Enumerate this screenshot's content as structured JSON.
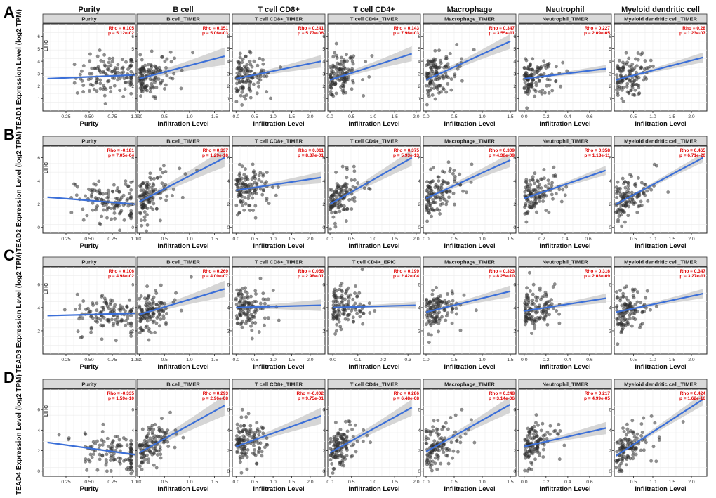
{
  "column_headers": [
    "Purity",
    "B cell",
    "T cell CD8+",
    "T cell CD4+",
    "Macrophage",
    "Neutrophil",
    "Myeloid dendritic cell"
  ],
  "cohort_label": "LIHC",
  "colors": {
    "points": "#333333",
    "line": "#3b6fd8",
    "band": "#c8c8c8",
    "stats": "#e00000",
    "strip": "#d9d9d9"
  },
  "chart_data": [
    {
      "row": "A",
      "ylabel": "TEAD1 Expression Level (log2 TPM)",
      "ylim": [
        0,
        7
      ],
      "yticks": [
        1,
        2,
        3,
        4,
        5,
        6
      ],
      "panels": [
        {
          "strip": "Purity",
          "xlabel": "Purity",
          "rho": "Rho = 0.105",
          "p": "p = 5.12e-02",
          "xticks": [
            "0.25",
            "0.50",
            "0.75",
            "1.00"
          ],
          "xlim": [
            0,
            1
          ],
          "fit": [
            [
              0.05,
              2.6
            ],
            [
              1.0,
              2.9
            ]
          ],
          "band": 0.15
        },
        {
          "strip": "B cell_TIMER",
          "xlabel": "Infiltration Level",
          "rho": "Rho = 0.151",
          "p": "p = 5.06e-03",
          "xticks": [
            "0.0",
            "0.5",
            "1.0",
            "1.5"
          ],
          "xlim": [
            -0.05,
            1.8
          ],
          "fit": [
            [
              0.0,
              2.6
            ],
            [
              1.7,
              4.4
            ]
          ],
          "band": 0.7
        },
        {
          "strip": "T cell CD8+_TIMER",
          "xlabel": "Infiltration Level",
          "rho": "Rho = 0.241",
          "p": "p = 5.77e-06",
          "xticks": [
            "0.0",
            "0.5",
            "1.0",
            "1.5",
            "2.0"
          ],
          "xlim": [
            -0.1,
            2.4
          ],
          "fit": [
            [
              0.0,
              2.6
            ],
            [
              2.3,
              4.0
            ]
          ],
          "band": 0.5
        },
        {
          "strip": "T cell CD4+_TIMER",
          "xlabel": "Infiltration Level",
          "rho": "Rho = 0.143",
          "p": "p = 7.96e-03",
          "xticks": [
            "0.0",
            "0.5",
            "1.0",
            "1.5",
            "2.0"
          ],
          "xlim": [
            -0.05,
            2.1
          ],
          "fit": [
            [
              0.0,
              2.5
            ],
            [
              1.9,
              4.6
            ]
          ],
          "band": 0.6
        },
        {
          "strip": "Macrophage_TIMER",
          "xlabel": "Infiltration Level",
          "rho": "Rho = 0.347",
          "p": "p = 3.55e-11",
          "xticks": [
            "0.0",
            "0.5",
            "1.0",
            "1.5"
          ],
          "xlim": [
            -0.05,
            1.6
          ],
          "fit": [
            [
              0.0,
              2.5
            ],
            [
              1.5,
              5.6
            ]
          ],
          "band": 0.6
        },
        {
          "strip": "Neutrophil_TIMER",
          "xlabel": "Infiltration Level",
          "rho": "Rho = 0.227",
          "p": "p = 2.09e-05",
          "xticks": [
            "0.0",
            "0.2",
            "0.4",
            "0.6"
          ],
          "xlim": [
            -0.05,
            0.8
          ],
          "fit": [
            [
              0.0,
              2.6
            ],
            [
              0.75,
              3.4
            ]
          ],
          "band": 0.3
        },
        {
          "strip": "Myeloid dendritic cell_TIMER",
          "xlabel": "Infiltration Level",
          "rho": "Rho = 0.28",
          "p": "p = 1.23e-07",
          "xticks": [
            "0.5",
            "1.0",
            "1.5",
            "2.0"
          ],
          "xlim": [
            0.0,
            2.4
          ],
          "fit": [
            [
              0.05,
              2.5
            ],
            [
              2.3,
              4.3
            ]
          ],
          "band": 0.4
        }
      ]
    },
    {
      "row": "B",
      "ylabel": "TEAD2 Expression Level (log2 TPM)",
      "ylim": [
        -0.5,
        7
      ],
      "yticks": [
        0,
        2,
        4,
        6
      ],
      "panels": [
        {
          "strip": "Purity",
          "xlabel": "Purity",
          "rho": "Rho = -0.181",
          "p": "p = 7.05e-04",
          "xticks": [
            "0.25",
            "0.50",
            "0.75",
            "1.00"
          ],
          "xlim": [
            0,
            1
          ],
          "fit": [
            [
              0.05,
              2.6
            ],
            [
              1.0,
              2.0
            ]
          ],
          "band": 0.15
        },
        {
          "strip": "B cell_TIMER",
          "xlabel": "Infiltration Level",
          "rho": "Rho = 0.337",
          "p": "p = 1.29e-10",
          "xticks": [
            "0.0",
            "0.5",
            "1.0",
            "1.5"
          ],
          "xlim": [
            -0.05,
            1.8
          ],
          "fit": [
            [
              0.0,
              2.2
            ],
            [
              1.7,
              6.0
            ]
          ],
          "band": 0.8
        },
        {
          "strip": "T cell CD8+_TIMER",
          "xlabel": "Infiltration Level",
          "rho": "Rho = 0.011",
          "p": "p = 8.37e-01",
          "xticks": [
            "0.0",
            "0.5",
            "1.0",
            "1.5",
            "2.0"
          ],
          "xlim": [
            -0.1,
            2.4
          ],
          "fit": [
            [
              0.0,
              3.2
            ],
            [
              2.3,
              4.3
            ]
          ],
          "band": 0.5
        },
        {
          "strip": "T cell CD4+_TIMER",
          "xlabel": "Infiltration Level",
          "rho": "Rho = 0.375",
          "p": "p = 5.93e-13",
          "xticks": [
            "0.0",
            "0.5",
            "1.0",
            "1.5",
            "2.0"
          ],
          "xlim": [
            -0.05,
            2.1
          ],
          "fit": [
            [
              0.0,
              2.0
            ],
            [
              1.9,
              6.0
            ]
          ],
          "band": 0.7
        },
        {
          "strip": "Macrophage_TIMER",
          "xlabel": "Infiltration Level",
          "rho": "Rho = 0.309",
          "p": "p = 4.38e-09",
          "xticks": [
            "0.0",
            "0.5",
            "1.0",
            "1.5"
          ],
          "xlim": [
            -0.05,
            1.6
          ],
          "fit": [
            [
              0.0,
              2.5
            ],
            [
              1.5,
              5.8
            ]
          ],
          "band": 0.6
        },
        {
          "strip": "Neutrophil_TIMER",
          "xlabel": "Infiltration Level",
          "rho": "Rho = 0.358",
          "p": "p = 1.13e-11",
          "xticks": [
            "0.2",
            "0.4",
            "0.6"
          ],
          "xlim": [
            0.0,
            0.8
          ],
          "fit": [
            [
              0.05,
              2.5
            ],
            [
              0.75,
              4.9
            ]
          ],
          "band": 0.4
        },
        {
          "strip": "Myeloid dendritic cell_TIMER",
          "xlabel": "Infiltration Level",
          "rho": "Rho = 0.465",
          "p": "p = 6.71e-20",
          "xticks": [
            "0.5",
            "1.0",
            "1.5",
            "2.0"
          ],
          "xlim": [
            0.0,
            2.4
          ],
          "fit": [
            [
              0.05,
              2.0
            ],
            [
              2.3,
              6.0
            ]
          ],
          "band": 0.4
        }
      ]
    },
    {
      "row": "C",
      "ylabel": "TEAD3 Expression Level (log2 TPM)",
      "ylim": [
        0,
        7.5
      ],
      "yticks": [
        2,
        4,
        6
      ],
      "panels": [
        {
          "strip": "Purity",
          "xlabel": "Purity",
          "rho": "Rho = 0.106",
          "p": "p = 4.98e-02",
          "xticks": [
            "0.25",
            "0.50",
            "0.75",
            "1.00"
          ],
          "xlim": [
            0,
            1
          ],
          "fit": [
            [
              0.05,
              3.3
            ],
            [
              1.0,
              3.5
            ]
          ],
          "band": 0.15
        },
        {
          "strip": "B cell_TIMER",
          "xlabel": "Infiltration Level",
          "rho": "Rho = 0.269",
          "p": "p = 4.00e-07",
          "xticks": [
            "0.0",
            "0.5",
            "1.0",
            "1.5"
          ],
          "xlim": [
            -0.05,
            1.8
          ],
          "fit": [
            [
              0.0,
              3.4
            ],
            [
              1.7,
              5.6
            ]
          ],
          "band": 0.7
        },
        {
          "strip": "T cell CD8+_TIMER",
          "xlabel": "Infiltration Level",
          "rho": "Rho = 0.056",
          "p": "p = 2.98e-01",
          "xticks": [
            "0.0",
            "0.5",
            "1.0",
            "1.5",
            "2.0"
          ],
          "xlim": [
            -0.1,
            2.4
          ],
          "fit": [
            [
              0.0,
              4.0
            ],
            [
              2.3,
              4.2
            ]
          ],
          "band": 0.5
        },
        {
          "strip": "T cell CD4+_EPIC",
          "xlabel": "Infiltration Level",
          "rho": "Rho = 0.199",
          "p": "p = 2.42e-04",
          "xticks": [
            "0.0",
            "0.1",
            "0.2",
            "0.3"
          ],
          "xlim": [
            -0.02,
            0.35
          ],
          "fit": [
            [
              0.0,
              4.0
            ],
            [
              0.33,
              4.2
            ]
          ],
          "band": 0.3
        },
        {
          "strip": "Macrophage_TIMER",
          "xlabel": "Infiltration Level",
          "rho": "Rho = 0.323",
          "p": "p = 8.25e-10",
          "xticks": [
            "0.0",
            "0.5",
            "1.0",
            "1.5"
          ],
          "xlim": [
            -0.05,
            1.6
          ],
          "fit": [
            [
              0.0,
              3.6
            ],
            [
              1.5,
              5.4
            ]
          ],
          "band": 0.5
        },
        {
          "strip": "Neutrophil_TIMER",
          "xlabel": "Infiltration Level",
          "rho": "Rho = 0.316",
          "p": "p = 2.03e-09",
          "xticks": [
            "0.0",
            "0.2",
            "0.4",
            "0.6"
          ],
          "xlim": [
            -0.05,
            0.8
          ],
          "fit": [
            [
              0.0,
              3.7
            ],
            [
              0.75,
              4.8
            ]
          ],
          "band": 0.4
        },
        {
          "strip": "Myeloid dendritic cell_TIMER",
          "xlabel": "Infiltration Level",
          "rho": "Rho = 0.347",
          "p": "p = 3.27e-11",
          "xticks": [
            "0.5",
            "1.0",
            "1.5",
            "2.0"
          ],
          "xlim": [
            0.0,
            2.4
          ],
          "fit": [
            [
              0.05,
              3.6
            ],
            [
              2.3,
              5.2
            ]
          ],
          "band": 0.4
        }
      ]
    },
    {
      "row": "D",
      "ylabel": "TEAD4 Expression Level (log2 TPM)",
      "ylim": [
        -0.5,
        8
      ],
      "yticks": [
        0,
        2,
        4,
        6
      ],
      "panels": [
        {
          "strip": "Purity",
          "xlabel": "Purity",
          "rho": "Rho = -0.335",
          "p": "p = 1.59e-10",
          "xticks": [
            "0.25",
            "0.50",
            "0.75",
            "1.00"
          ],
          "xlim": [
            0,
            1
          ],
          "fit": [
            [
              0.05,
              2.8
            ],
            [
              1.0,
              1.6
            ]
          ],
          "band": 0.15
        },
        {
          "strip": "B cell_TIMER",
          "xlabel": "Infiltration Level",
          "rho": "Rho = 0.293",
          "p": "p = 2.96e-08",
          "xticks": [
            "0.0",
            "0.5",
            "1.0",
            "1.5"
          ],
          "xlim": [
            -0.05,
            1.8
          ],
          "fit": [
            [
              0.0,
              1.8
            ],
            [
              1.7,
              6.4
            ]
          ],
          "band": 1.0
        },
        {
          "strip": "T cell CD8+_TIMER",
          "xlabel": "Infiltration Level",
          "rho": "Rho = -0.002",
          "p": "p = 9.75e-01",
          "xticks": [
            "0.0",
            "0.5",
            "1.0",
            "1.5",
            "2.0"
          ],
          "xlim": [
            -0.1,
            2.4
          ],
          "fit": [
            [
              0.0,
              2.4
            ],
            [
              2.3,
              5.4
            ]
          ],
          "band": 0.8
        },
        {
          "strip": "T cell CD4+_TIMER",
          "xlabel": "Infiltration Level",
          "rho": "Rho = 0.286",
          "p": "p = 6.48e-08",
          "xticks": [
            "0.0",
            "0.5",
            "1.0",
            "1.5",
            "2.0"
          ],
          "xlim": [
            -0.05,
            2.1
          ],
          "fit": [
            [
              0.0,
              1.8
            ],
            [
              1.9,
              6.2
            ]
          ],
          "band": 0.8
        },
        {
          "strip": "Macrophage_TIMER",
          "xlabel": "Infiltration Level",
          "rho": "Rho = 0.248",
          "p": "p = 3.14e-06",
          "xticks": [
            "0.0",
            "0.5",
            "1.0",
            "1.5"
          ],
          "xlim": [
            -0.05,
            1.6
          ],
          "fit": [
            [
              0.0,
              1.9
            ],
            [
              1.5,
              6.5
            ]
          ],
          "band": 0.8
        },
        {
          "strip": "Neutrophil_TIMER",
          "xlabel": "Infiltration Level",
          "rho": "Rho = 0.217",
          "p": "p = 4.99e-05",
          "xticks": [
            "0.0",
            "0.2",
            "0.4",
            "0.6"
          ],
          "xlim": [
            -0.05,
            0.8
          ],
          "fit": [
            [
              0.0,
              2.4
            ],
            [
              0.75,
              4.2
            ]
          ],
          "band": 0.6
        },
        {
          "strip": "Myeloid dendritic cell_TIMER",
          "xlabel": "Infiltration Level",
          "rho": "Rho = 0.424",
          "p": "p = 1.62e-16",
          "xticks": [
            "0.5",
            "1.0",
            "1.5",
            "2.0"
          ],
          "xlim": [
            0.0,
            2.4
          ],
          "fit": [
            [
              0.05,
              1.5
            ],
            [
              2.3,
              7.0
            ]
          ],
          "band": 0.6
        }
      ]
    }
  ]
}
